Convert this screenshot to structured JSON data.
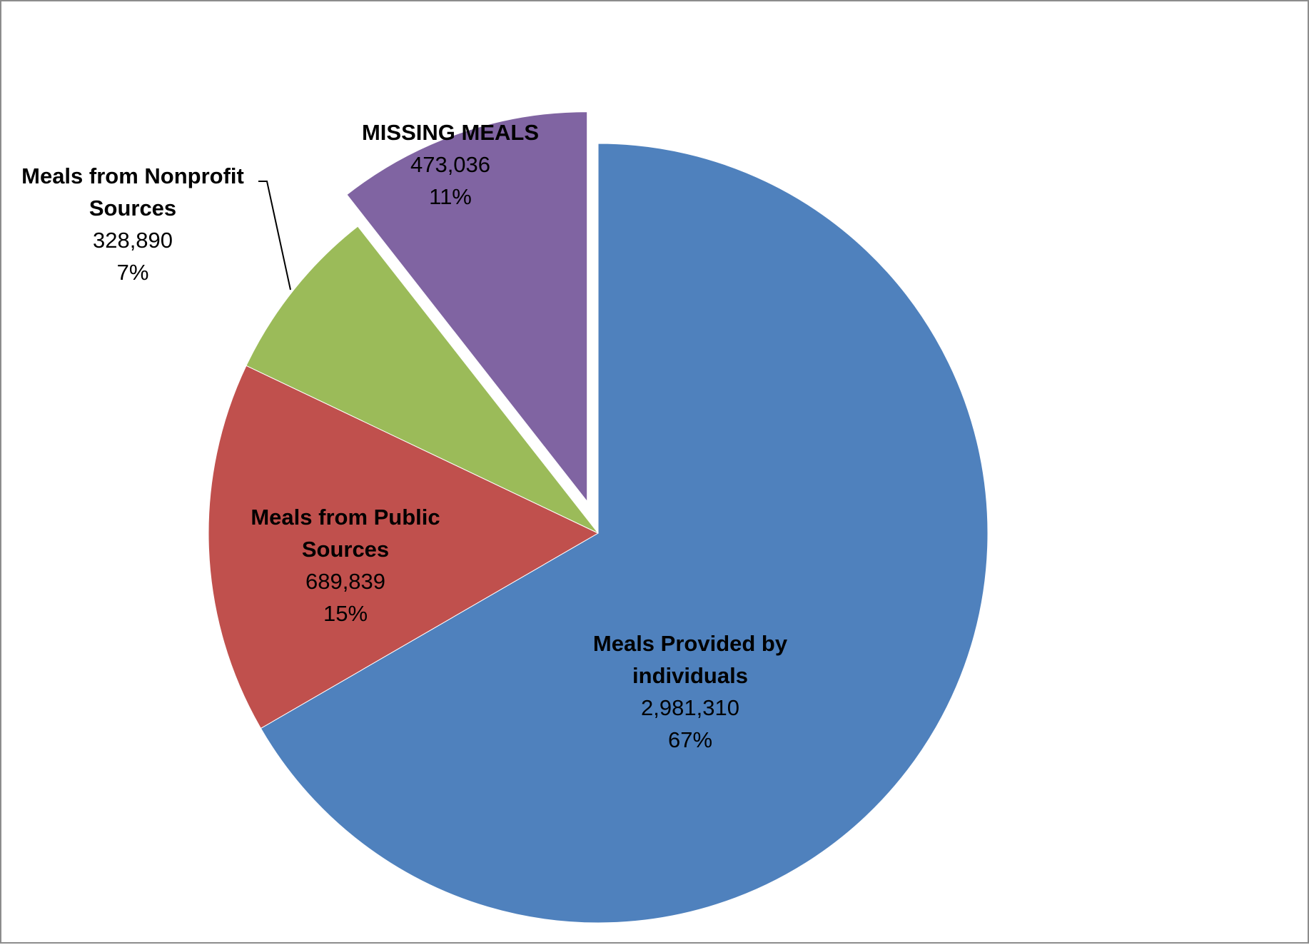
{
  "chart_data": {
    "type": "pie",
    "title": "",
    "slices": [
      {
        "label": "Meals Provided by individuals",
        "label_lines": [
          "Meals Provided by",
          "individuals"
        ],
        "value": 2981310,
        "value_label": "2,981,310",
        "percent_label": "67%",
        "color": "#4F81BD",
        "exploded": false
      },
      {
        "label": "Meals from Public Sources",
        "label_lines": [
          "Meals from Public",
          "Sources"
        ],
        "value": 689839,
        "value_label": "689,839",
        "percent_label": "15%",
        "color": "#C0504D",
        "exploded": false
      },
      {
        "label": "Meals from Nonprofit Sources",
        "label_lines": [
          "Meals from Nonprofit",
          "Sources"
        ],
        "value": 328890,
        "value_label": "328,890",
        "percent_label": "7%",
        "color": "#9BBB59",
        "exploded": false
      },
      {
        "label": "MISSING MEALS",
        "label_lines": [
          "MISSING MEALS"
        ],
        "value": 473036,
        "value_label": "473,036",
        "percent_label": "11%",
        "color": "#8064A2",
        "exploded": true
      }
    ],
    "start": "12 o'clock",
    "direction": "clockwise",
    "legend": "none"
  }
}
